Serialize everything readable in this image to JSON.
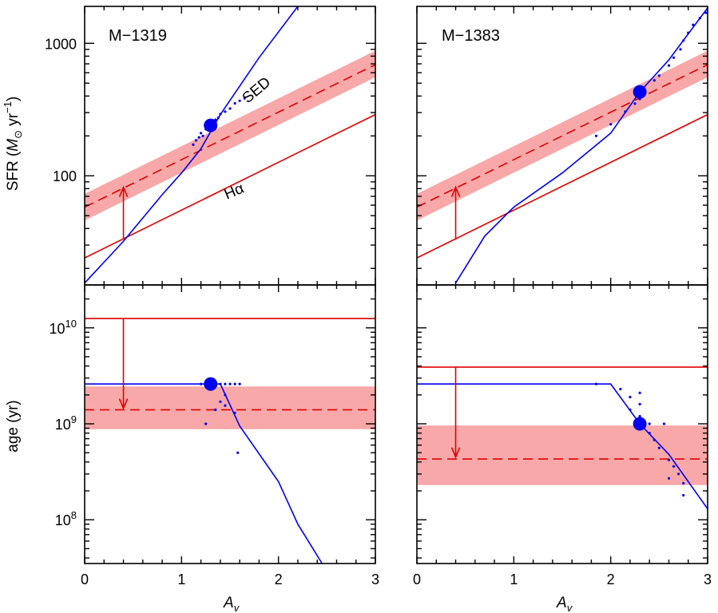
{
  "chart_data": {
    "type": "line",
    "x_axis": {
      "label": "Av",
      "label_main": "A",
      "label_sub": "v",
      "range": [
        0,
        3
      ],
      "ticks": [
        "0",
        "1",
        "2",
        "3"
      ],
      "tick_values": [
        0,
        1,
        2,
        3
      ]
    },
    "sfr_axis": {
      "label_prefix": "SFR (",
      "label_M": "M",
      "label_sun": "⊙",
      "label_mid": " yr",
      "label_exp": "−1",
      "label_suffix": ")",
      "range": [
        15,
        1900
      ],
      "scale": "log",
      "ticks": [
        "100",
        "1000"
      ],
      "tick_values": [
        100,
        1000
      ]
    },
    "age_axis": {
      "label": "age (yr)",
      "range": [
        35000000.0,
        28000000000.0
      ],
      "scale": "log",
      "tick_values": [
        100000000.0,
        1000000000.0,
        10000000000.0
      ],
      "tick_base": "10",
      "tick_exps": [
        "8",
        "9",
        "10"
      ]
    },
    "panels": [
      {
        "title": "M−1319",
        "sed_label": "SED",
        "ha_label": "Hα",
        "sfr": {
          "sed_curve": [
            [
              0.0,
              15.5
            ],
            [
              0.4,
              32
            ],
            [
              0.8,
              72
            ],
            [
              1.0,
              105
            ],
            [
              1.2,
              160
            ],
            [
              1.4,
              290
            ],
            [
              1.8,
              780
            ],
            [
              2.2,
              1900
            ]
          ],
          "ha_line": [
            [
              0.0,
              24
            ],
            [
              3.0,
              290
            ]
          ],
          "uv_line": [
            [
              0.0,
              58
            ],
            [
              3.0,
              690
            ]
          ],
          "uv_band_low": [
            [
              0.0,
              46
            ],
            [
              3.0,
              555
            ]
          ],
          "uv_band_high": [
            [
              0.0,
              73
            ],
            [
              3.0,
              880
            ]
          ],
          "best_point": [
            1.3,
            240
          ],
          "arrow": {
            "x": 0.4,
            "from": 33,
            "to": 82
          },
          "scatter": [
            [
              1.12,
              172
            ],
            [
              1.15,
              185
            ],
            [
              1.18,
              195
            ],
            [
              1.2,
              210
            ],
            [
              1.22,
              200
            ],
            [
              1.25,
              225
            ],
            [
              1.28,
              232
            ],
            [
              1.32,
              250
            ],
            [
              1.35,
              265
            ],
            [
              1.38,
              275
            ],
            [
              1.4,
              292
            ],
            [
              1.45,
              305
            ],
            [
              1.5,
              322
            ],
            [
              1.55,
              352
            ],
            [
              1.6,
              368
            ],
            [
              1.65,
              385
            ]
          ]
        },
        "age": {
          "sed_curve": [
            [
              0.0,
              2600000000.0
            ],
            [
              1.4,
              2600000000.0
            ],
            [
              1.6,
              950000000.0
            ],
            [
              2.0,
              250000000.0
            ],
            [
              2.2,
              90000000.0
            ],
            [
              2.45,
              35000000.0
            ]
          ],
          "ha_line": 12500000000.0,
          "uv_line": 1400000000.0,
          "uv_band": [
            880000000.0,
            2450000000.0
          ],
          "best_point": [
            1.3,
            2600000000.0
          ],
          "arrow": {
            "x": 0.4,
            "from": 12500000000.0,
            "to": 1450000000.0
          },
          "scatter": [
            [
              1.2,
              2600000000.0
            ],
            [
              1.25,
              2600000000.0
            ],
            [
              1.35,
              2600000000.0
            ],
            [
              1.4,
              2600000000.0
            ],
            [
              1.45,
              2600000000.0
            ],
            [
              1.5,
              2600000000.0
            ],
            [
              1.55,
              2600000000.0
            ],
            [
              1.6,
              2600000000.0
            ],
            [
              1.45,
              2000000000.0
            ],
            [
              1.4,
              1700000000.0
            ],
            [
              1.45,
              1550000000.0
            ],
            [
              1.35,
              1400000000.0
            ],
            [
              1.55,
              1300000000.0
            ],
            [
              1.25,
              1000000000.0
            ],
            [
              1.58,
              500000000.0
            ]
          ]
        }
      },
      {
        "title": "M−1383",
        "sfr": {
          "sed_curve": [
            [
              0.4,
              15.5
            ],
            [
              0.7,
              35
            ],
            [
              1.0,
              58
            ],
            [
              1.5,
              105
            ],
            [
              2.0,
              210
            ],
            [
              2.3,
              430
            ],
            [
              2.6,
              750
            ],
            [
              3.0,
              1850
            ]
          ],
          "ha_line": [
            [
              0.0,
              24
            ],
            [
              3.0,
              290
            ]
          ],
          "uv_line": [
            [
              0.0,
              58
            ],
            [
              3.0,
              690
            ]
          ],
          "uv_band_low": [
            [
              0.0,
              46
            ],
            [
              3.0,
              555
            ]
          ],
          "uv_band_high": [
            [
              0.0,
              73
            ],
            [
              3.0,
              880
            ]
          ],
          "best_point": [
            2.3,
            430
          ],
          "arrow": {
            "x": 0.4,
            "from": 33,
            "to": 82
          },
          "scatter": [
            [
              1.85,
              200
            ],
            [
              2.0,
              245
            ],
            [
              2.15,
              305
            ],
            [
              2.25,
              350
            ],
            [
              2.3,
              380
            ],
            [
              2.35,
              420
            ],
            [
              2.45,
              525
            ],
            [
              2.5,
              570
            ],
            [
              2.6,
              680
            ],
            [
              2.65,
              780
            ],
            [
              2.72,
              900
            ],
            [
              2.75,
              1050
            ],
            [
              2.8,
              1200
            ],
            [
              2.85,
              1380
            ],
            [
              2.92,
              1550
            ],
            [
              2.98,
              1700
            ]
          ]
        },
        "age": {
          "sed_curve": [
            [
              0.0,
              2600000000.0
            ],
            [
              2.0,
              2600000000.0
            ],
            [
              2.3,
              1000000000.0
            ],
            [
              2.6,
              480000000.0
            ],
            [
              3.0,
              130000000.0
            ]
          ],
          "ha_line": 3900000000.0,
          "uv_line": 430000000.0,
          "uv_band": [
            230000000.0,
            960000000.0
          ],
          "best_point": [
            2.3,
            1000000000.0
          ],
          "arrow": {
            "x": 0.4,
            "from": 3900000000.0,
            "to": 450000000.0
          },
          "scatter": [
            [
              1.85,
              2600000000.0
            ],
            [
              2.1,
              2300000000.0
            ],
            [
              2.2,
              1900000000.0
            ],
            [
              2.3,
              2100000000.0
            ],
            [
              2.3,
              1600000000.0
            ],
            [
              2.2,
              1400000000.0
            ],
            [
              2.3,
              1200000000.0
            ],
            [
              2.4,
              1000000000.0
            ],
            [
              2.55,
              1000000000.0
            ],
            [
              2.4,
              800000000.0
            ],
            [
              2.45,
              680000000.0
            ],
            [
              2.5,
              560000000.0
            ],
            [
              2.6,
              420000000.0
            ],
            [
              2.65,
              360000000.0
            ],
            [
              2.7,
              300000000.0
            ],
            [
              2.6,
              270000000.0
            ],
            [
              2.75,
              240000000.0
            ],
            [
              2.75,
              180000000.0
            ]
          ]
        }
      }
    ],
    "colors": {
      "sed": "#0000ee",
      "ha": "#e00000",
      "band": "#f8a8a8",
      "axis": "#000000"
    }
  }
}
